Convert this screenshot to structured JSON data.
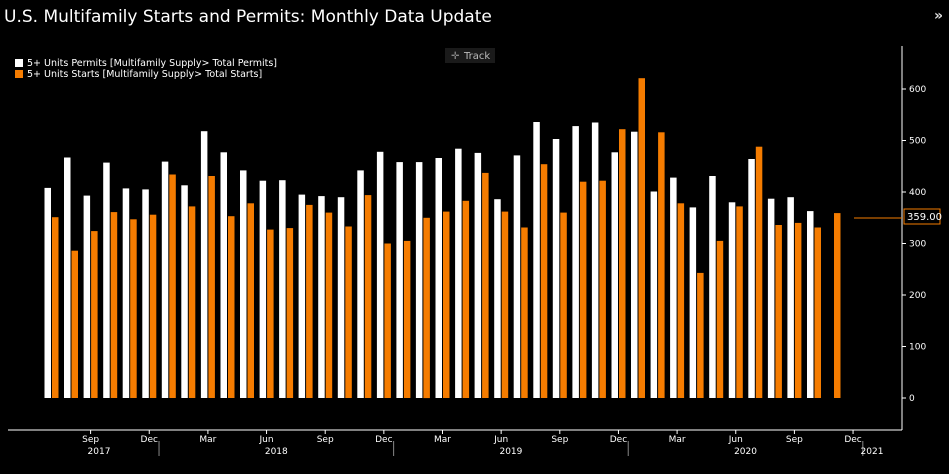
{
  "header": {
    "title": "U.S. Multifamily Starts and Permits: Monthly Data Update",
    "collapse_icon": "double-chevron-right-icon"
  },
  "track_button": {
    "label": "Track",
    "icon": "crosshair-icon"
  },
  "last_value_badge": "359.00",
  "colors": {
    "background": "#000000",
    "permits": "#ffffff",
    "starts": "#f57c00",
    "axis": "#ffffff"
  },
  "chart_data": {
    "type": "bar",
    "x": [
      "2017-07",
      "2017-08",
      "2017-09",
      "2017-10",
      "2017-11",
      "2017-12",
      "2018-01",
      "2018-02",
      "2018-03",
      "2018-04",
      "2018-05",
      "2018-06",
      "2018-07",
      "2018-08",
      "2018-09",
      "2018-10",
      "2018-11",
      "2018-12",
      "2019-01",
      "2019-02",
      "2019-03",
      "2019-04",
      "2019-05",
      "2019-06",
      "2019-07",
      "2019-08",
      "2019-09",
      "2019-10",
      "2019-11",
      "2019-12",
      "2020-01",
      "2020-02",
      "2020-03",
      "2020-04",
      "2020-05",
      "2020-06",
      "2020-07",
      "2020-08",
      "2020-09",
      "2020-10",
      "2020-11"
    ],
    "series": [
      {
        "name": "5+ Units Permits [Multifamily Supply> Total Permits]",
        "color": "#ffffff",
        "values": [
          408,
          467,
          393,
          457,
          407,
          405,
          459,
          413,
          518,
          477,
          442,
          422,
          423,
          395,
          392,
          390,
          442,
          478,
          458,
          458,
          466,
          484,
          476,
          386,
          471,
          536,
          503,
          528,
          535,
          477,
          517,
          401,
          428,
          370,
          431,
          380,
          464,
          387,
          390,
          363,
          null
        ]
      },
      {
        "name": "5+ Units Starts [Multifamily Supply> Total Starts]",
        "color": "#f57c00",
        "values": [
          351,
          286,
          324,
          361,
          347,
          356,
          434,
          372,
          431,
          353,
          378,
          327,
          330,
          375,
          360,
          333,
          394,
          300,
          305,
          350,
          362,
          383,
          437,
          362,
          331,
          454,
          360,
          420,
          422,
          522,
          621,
          516,
          378,
          243,
          305,
          372,
          488,
          336,
          340,
          331,
          359
        ]
      }
    ],
    "y_ticks": [
      0,
      100,
      200,
      300,
      400,
      500,
      600
    ],
    "ylim": [
      -55,
      690
    ],
    "x_month_labels": [
      "Sep",
      "Dec",
      "Mar",
      "Jun",
      "Sep",
      "Dec",
      "Mar",
      "Jun",
      "Sep",
      "Dec",
      "Mar",
      "Jun",
      "Sep",
      "Dec"
    ],
    "x_year_labels": [
      "2017",
      "2018",
      "2019",
      "2020",
      "2021"
    ],
    "legend_position": "top-left",
    "grid": false
  }
}
